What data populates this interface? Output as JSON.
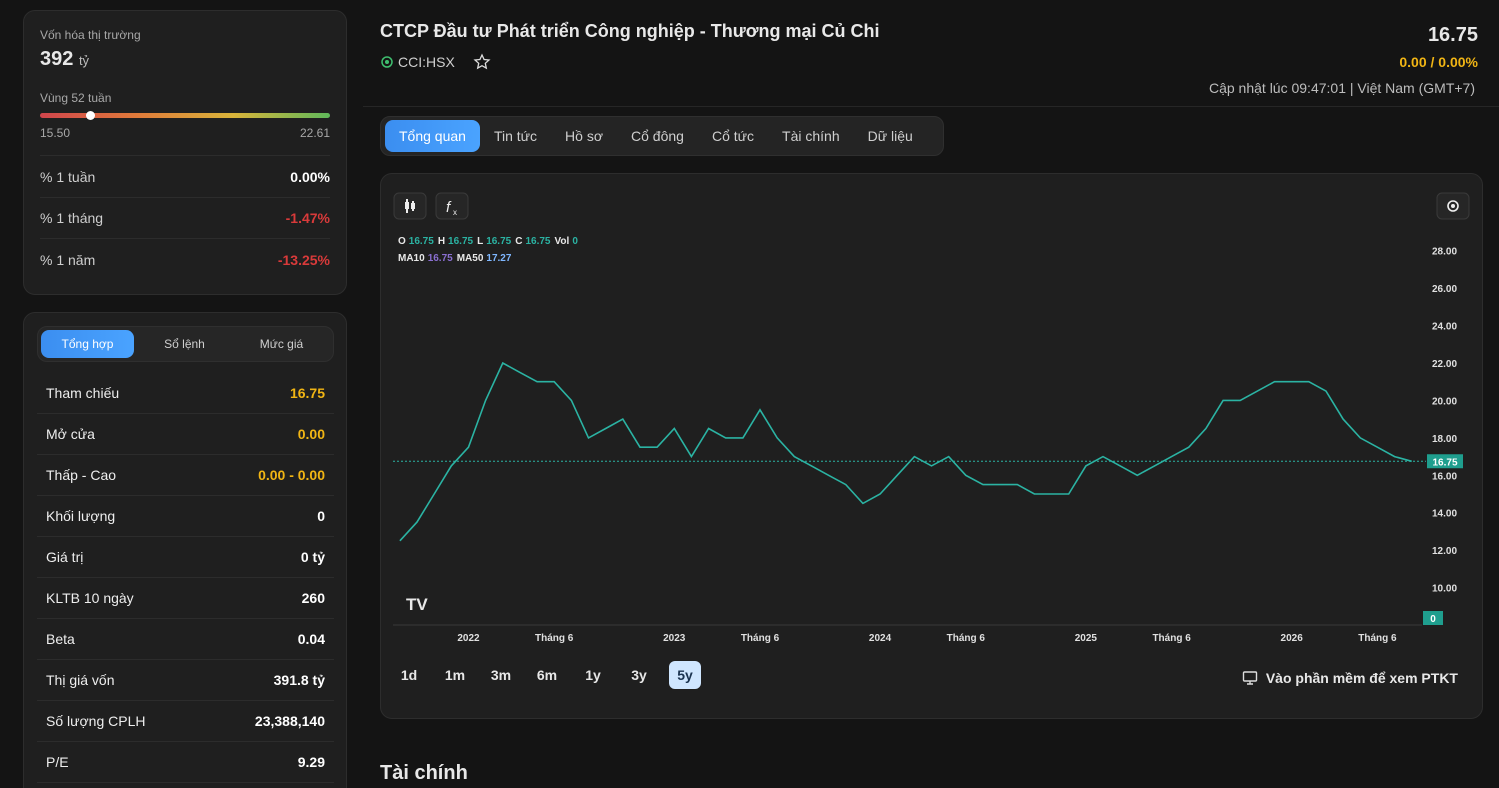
{
  "sidebar": {
    "market_cap": {
      "label": "Vốn hóa thị trường",
      "value": "392",
      "unit": "tỷ"
    },
    "range52": {
      "label": "Vùng 52 tuần",
      "low": {
        "value": 15.5,
        "label": "15.50"
      },
      "high": {
        "value": 22.61,
        "label": "22.61"
      },
      "current": 16.75
    },
    "changes": [
      {
        "label": "% 1 tuần",
        "value": "0.00%"
      },
      {
        "label": "% 1 tháng",
        "value": "-1.47%"
      },
      {
        "label": "% 1 năm",
        "value": "-13.25%"
      }
    ],
    "tabs": [
      "Tổng hợp",
      "Sổ lệnh",
      "Mức giá"
    ],
    "rows": [
      {
        "label": "Tham chiếu",
        "value": "16.75"
      },
      {
        "label": "Mở cửa",
        "value": "0.00"
      },
      {
        "label": "Thấp - Cao",
        "value": "0.00 - 0.00"
      },
      {
        "label": "Khối lượng",
        "value": "0"
      },
      {
        "label": "Giá trị",
        "value": "0 tỷ"
      },
      {
        "label": "KLTB 10 ngày",
        "value": "260"
      },
      {
        "label": "Beta",
        "value": "0.04"
      },
      {
        "label": "Thị giá vốn",
        "value": "391.8 tỷ"
      },
      {
        "label": "Số lượng CPLH",
        "value": "23,388,140"
      },
      {
        "label": "P/E",
        "value": "9.29"
      }
    ]
  },
  "header": {
    "title": "CTCP Đầu tư Phát triển Công nghiệp - Thương mại Củ Chi",
    "ticker": "CCI:HSX",
    "price": "16.75",
    "change": "0.00 / 0.00%",
    "updated": "Cập nhật lúc 09:47:01 | Việt Nam (GMT+7)"
  },
  "nav": [
    "Tổng quan",
    "Tin tức",
    "Hồ sơ",
    "Cổ đông",
    "Cổ tức",
    "Tài chính",
    "Dữ liệu"
  ],
  "chart_data": {
    "type": "line",
    "legend": {
      "ohlc": [
        {
          "label": "O",
          "value": "16.75"
        },
        {
          "label": "H",
          "value": "16.75"
        },
        {
          "label": "L",
          "value": "16.75"
        },
        {
          "label": "C",
          "value": "16.75"
        },
        {
          "label": "Vol",
          "value": "0"
        }
      ],
      "ma": [
        {
          "label": "MA10",
          "value": "16.75"
        },
        {
          "label": "MA50",
          "value": "17.27"
        }
      ]
    },
    "x": [
      0,
      1,
      2,
      3,
      4,
      5,
      6,
      7,
      8,
      9,
      10,
      11,
      12,
      13,
      14,
      15,
      16,
      17,
      18,
      19,
      20,
      21,
      22,
      23,
      24,
      25,
      26,
      27,
      28,
      29,
      30,
      31,
      32,
      33,
      34,
      35,
      36,
      37,
      38,
      39,
      40,
      41,
      42,
      43,
      44,
      45,
      46,
      47,
      48,
      49,
      50,
      51,
      52,
      53,
      54,
      55,
      56,
      57,
      58,
      59
    ],
    "values": [
      12.5,
      13.5,
      15,
      16.5,
      17.5,
      20,
      22,
      21.5,
      21,
      21,
      20,
      18,
      18.5,
      19,
      17.5,
      17.5,
      18.5,
      17,
      18.5,
      18,
      18,
      19.5,
      18,
      17,
      16.5,
      16,
      15.5,
      14.5,
      15,
      16,
      17,
      16.5,
      17,
      16,
      15.5,
      15.5,
      15.5,
      15,
      15,
      15,
      16.5,
      17,
      16.5,
      16,
      16.5,
      17,
      17.5,
      18.5,
      20,
      20,
      20.5,
      21,
      21,
      21,
      20.5,
      19,
      18,
      17.5,
      17,
      16.75
    ],
    "color": "#2bb3a3",
    "xlim": [
      -0.4,
      59.6
    ],
    "xticks": [
      {
        "value": 4,
        "label": "2022"
      },
      {
        "value": 9,
        "label": "Tháng 6"
      },
      {
        "value": 16,
        "label": "2023"
      },
      {
        "value": 21,
        "label": "Tháng 6"
      },
      {
        "value": 28,
        "label": "2024"
      },
      {
        "value": 33,
        "label": "Tháng 6"
      },
      {
        "value": 40,
        "label": "2025"
      },
      {
        "value": 45,
        "label": "Tháng 6"
      },
      {
        "value": 52,
        "label": "2026"
      },
      {
        "value": 57,
        "label": "Tháng 6"
      }
    ],
    "ylim": [
      8,
      29
    ],
    "yticks": [
      {
        "value": 10,
        "label": "10.00"
      },
      {
        "value": 12,
        "label": "12.00"
      },
      {
        "value": 14,
        "label": "14.00"
      },
      {
        "value": 16,
        "label": "16.00"
      },
      {
        "value": 18,
        "label": "18.00"
      },
      {
        "value": 20,
        "label": "20.00"
      },
      {
        "value": 22,
        "label": "22.00"
      },
      {
        "value": 24,
        "label": "24.00"
      },
      {
        "value": 26,
        "label": "26.00"
      },
      {
        "value": 28,
        "label": "28.00"
      }
    ],
    "last_price": {
      "value": 16.75,
      "label": "16.75"
    },
    "last_volume": 0
  },
  "ranges": [
    "1d",
    "1m",
    "3m",
    "6m",
    "1y",
    "3y",
    "5y"
  ],
  "active_range": 6,
  "software_link": "Vào phần mềm để xem PTKT",
  "section_title": "Tài chính"
}
